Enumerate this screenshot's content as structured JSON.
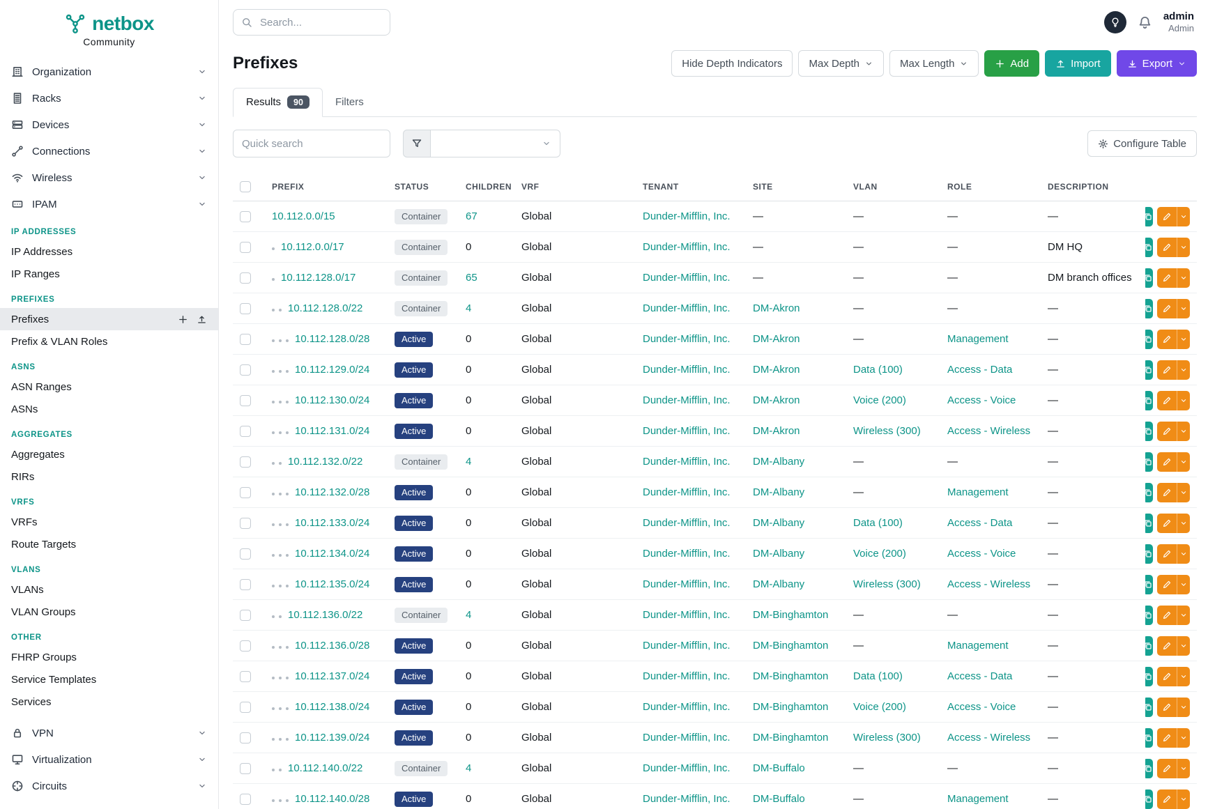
{
  "colors": {
    "brand_teal": "#0d9488",
    "active_badge_blue": "#26417f",
    "container_badge_gray": "#e9ecef",
    "add_green": "#28a046",
    "import_teal": "#18a5a0",
    "export_purple": "#7048e8",
    "edit_orange": "#f08c16",
    "copy_teal": "#14a292"
  },
  "brand": {
    "logo": "netbox",
    "subtitle": "Community"
  },
  "topbar": {
    "search_placeholder": "Search...",
    "user_name": "admin",
    "user_role": "Admin"
  },
  "sidebar": {
    "top_items": [
      {
        "label": "Organization",
        "icon": "organization"
      },
      {
        "label": "Racks",
        "icon": "racks"
      },
      {
        "label": "Devices",
        "icon": "devices"
      },
      {
        "label": "Connections",
        "icon": "connections"
      },
      {
        "label": "Wireless",
        "icon": "wireless"
      },
      {
        "label": "IPAM",
        "icon": "ipam"
      }
    ],
    "sections": [
      {
        "header": "IP ADDRESSES",
        "items": [
          {
            "label": "IP Addresses"
          },
          {
            "label": "IP Ranges"
          }
        ]
      },
      {
        "header": "PREFIXES",
        "items": [
          {
            "label": "Prefixes",
            "active": true,
            "quick_actions": true
          },
          {
            "label": "Prefix & VLAN Roles"
          }
        ]
      },
      {
        "header": "ASNS",
        "items": [
          {
            "label": "ASN Ranges"
          },
          {
            "label": "ASNs"
          }
        ]
      },
      {
        "header": "AGGREGATES",
        "items": [
          {
            "label": "Aggregates"
          },
          {
            "label": "RIRs"
          }
        ]
      },
      {
        "header": "VRFS",
        "items": [
          {
            "label": "VRFs"
          },
          {
            "label": "Route Targets"
          }
        ]
      },
      {
        "header": "VLANS",
        "items": [
          {
            "label": "VLANs"
          },
          {
            "label": "VLAN Groups"
          }
        ]
      },
      {
        "header": "OTHER",
        "items": [
          {
            "label": "FHRP Groups"
          },
          {
            "label": "Service Templates"
          },
          {
            "label": "Services"
          }
        ]
      }
    ],
    "bottom_items": [
      {
        "label": "VPN",
        "icon": "vpn"
      },
      {
        "label": "Virtualization",
        "icon": "virtualization"
      },
      {
        "label": "Circuits",
        "icon": "circuits"
      }
    ]
  },
  "page": {
    "title": "Prefixes",
    "toolbar": {
      "hide_depth_label": "Hide Depth Indicators",
      "max_depth_label": "Max Depth",
      "max_length_label": "Max Length",
      "add_label": "Add",
      "import_label": "Import",
      "export_label": "Export"
    },
    "tabs": {
      "results_label": "Results",
      "results_count": "90",
      "filters_label": "Filters"
    },
    "quick_search_placeholder": "Quick search",
    "configure_table_label": "Configure Table"
  },
  "table": {
    "columns": [
      "PREFIX",
      "STATUS",
      "CHILDREN",
      "VRF",
      "TENANT",
      "SITE",
      "VLAN",
      "ROLE",
      "DESCRIPTION"
    ],
    "empty_value": "—",
    "rows": [
      {
        "depth": 0,
        "prefix": "10.112.0.0/15",
        "status": "Container",
        "children": "67",
        "vrf": "Global",
        "tenant": "Dunder-Mifflin, Inc.",
        "site": "—",
        "vlan": "—",
        "role": "—",
        "description": "—"
      },
      {
        "depth": 1,
        "prefix": "10.112.0.0/17",
        "status": "Container",
        "children": "0",
        "vrf": "Global",
        "tenant": "Dunder-Mifflin, Inc.",
        "site": "—",
        "vlan": "—",
        "role": "—",
        "description": "DM HQ"
      },
      {
        "depth": 1,
        "prefix": "10.112.128.0/17",
        "status": "Container",
        "children": "65",
        "vrf": "Global",
        "tenant": "Dunder-Mifflin, Inc.",
        "site": "—",
        "vlan": "—",
        "role": "—",
        "description": "DM branch offices"
      },
      {
        "depth": 2,
        "prefix": "10.112.128.0/22",
        "status": "Container",
        "children": "4",
        "vrf": "Global",
        "tenant": "Dunder-Mifflin, Inc.",
        "site": "DM-Akron",
        "vlan": "—",
        "role": "—",
        "description": "—"
      },
      {
        "depth": 3,
        "prefix": "10.112.128.0/28",
        "status": "Active",
        "children": "0",
        "vrf": "Global",
        "tenant": "Dunder-Mifflin, Inc.",
        "site": "DM-Akron",
        "vlan": "—",
        "role": "Management",
        "description": "—"
      },
      {
        "depth": 3,
        "prefix": "10.112.129.0/24",
        "status": "Active",
        "children": "0",
        "vrf": "Global",
        "tenant": "Dunder-Mifflin, Inc.",
        "site": "DM-Akron",
        "vlan": "Data (100)",
        "role": "Access - Data",
        "description": "—"
      },
      {
        "depth": 3,
        "prefix": "10.112.130.0/24",
        "status": "Active",
        "children": "0",
        "vrf": "Global",
        "tenant": "Dunder-Mifflin, Inc.",
        "site": "DM-Akron",
        "vlan": "Voice (200)",
        "role": "Access - Voice",
        "description": "—"
      },
      {
        "depth": 3,
        "prefix": "10.112.131.0/24",
        "status": "Active",
        "children": "0",
        "vrf": "Global",
        "tenant": "Dunder-Mifflin, Inc.",
        "site": "DM-Akron",
        "vlan": "Wireless (300)",
        "role": "Access - Wireless",
        "description": "—"
      },
      {
        "depth": 2,
        "prefix": "10.112.132.0/22",
        "status": "Container",
        "children": "4",
        "vrf": "Global",
        "tenant": "Dunder-Mifflin, Inc.",
        "site": "DM-Albany",
        "vlan": "—",
        "role": "—",
        "description": "—"
      },
      {
        "depth": 3,
        "prefix": "10.112.132.0/28",
        "status": "Active",
        "children": "0",
        "vrf": "Global",
        "tenant": "Dunder-Mifflin, Inc.",
        "site": "DM-Albany",
        "vlan": "—",
        "role": "Management",
        "description": "—"
      },
      {
        "depth": 3,
        "prefix": "10.112.133.0/24",
        "status": "Active",
        "children": "0",
        "vrf": "Global",
        "tenant": "Dunder-Mifflin, Inc.",
        "site": "DM-Albany",
        "vlan": "Data (100)",
        "role": "Access - Data",
        "description": "—"
      },
      {
        "depth": 3,
        "prefix": "10.112.134.0/24",
        "status": "Active",
        "children": "0",
        "vrf": "Global",
        "tenant": "Dunder-Mifflin, Inc.",
        "site": "DM-Albany",
        "vlan": "Voice (200)",
        "role": "Access - Voice",
        "description": "—"
      },
      {
        "depth": 3,
        "prefix": "10.112.135.0/24",
        "status": "Active",
        "children": "0",
        "vrf": "Global",
        "tenant": "Dunder-Mifflin, Inc.",
        "site": "DM-Albany",
        "vlan": "Wireless (300)",
        "role": "Access - Wireless",
        "description": "—"
      },
      {
        "depth": 2,
        "prefix": "10.112.136.0/22",
        "status": "Container",
        "children": "4",
        "vrf": "Global",
        "tenant": "Dunder-Mifflin, Inc.",
        "site": "DM-Binghamton",
        "vlan": "—",
        "role": "—",
        "description": "—"
      },
      {
        "depth": 3,
        "prefix": "10.112.136.0/28",
        "status": "Active",
        "children": "0",
        "vrf": "Global",
        "tenant": "Dunder-Mifflin, Inc.",
        "site": "DM-Binghamton",
        "vlan": "—",
        "role": "Management",
        "description": "—"
      },
      {
        "depth": 3,
        "prefix": "10.112.137.0/24",
        "status": "Active",
        "children": "0",
        "vrf": "Global",
        "tenant": "Dunder-Mifflin, Inc.",
        "site": "DM-Binghamton",
        "vlan": "Data (100)",
        "role": "Access - Data",
        "description": "—"
      },
      {
        "depth": 3,
        "prefix": "10.112.138.0/24",
        "status": "Active",
        "children": "0",
        "vrf": "Global",
        "tenant": "Dunder-Mifflin, Inc.",
        "site": "DM-Binghamton",
        "vlan": "Voice (200)",
        "role": "Access - Voice",
        "description": "—"
      },
      {
        "depth": 3,
        "prefix": "10.112.139.0/24",
        "status": "Active",
        "children": "0",
        "vrf": "Global",
        "tenant": "Dunder-Mifflin, Inc.",
        "site": "DM-Binghamton",
        "vlan": "Wireless (300)",
        "role": "Access - Wireless",
        "description": "—"
      },
      {
        "depth": 2,
        "prefix": "10.112.140.0/22",
        "status": "Container",
        "children": "4",
        "vrf": "Global",
        "tenant": "Dunder-Mifflin, Inc.",
        "site": "DM-Buffalo",
        "vlan": "—",
        "role": "—",
        "description": "—"
      },
      {
        "depth": 3,
        "prefix": "10.112.140.0/28",
        "status": "Active",
        "children": "0",
        "vrf": "Global",
        "tenant": "Dunder-Mifflin, Inc.",
        "site": "DM-Buffalo",
        "vlan": "—",
        "role": "Management",
        "description": "—"
      }
    ]
  }
}
